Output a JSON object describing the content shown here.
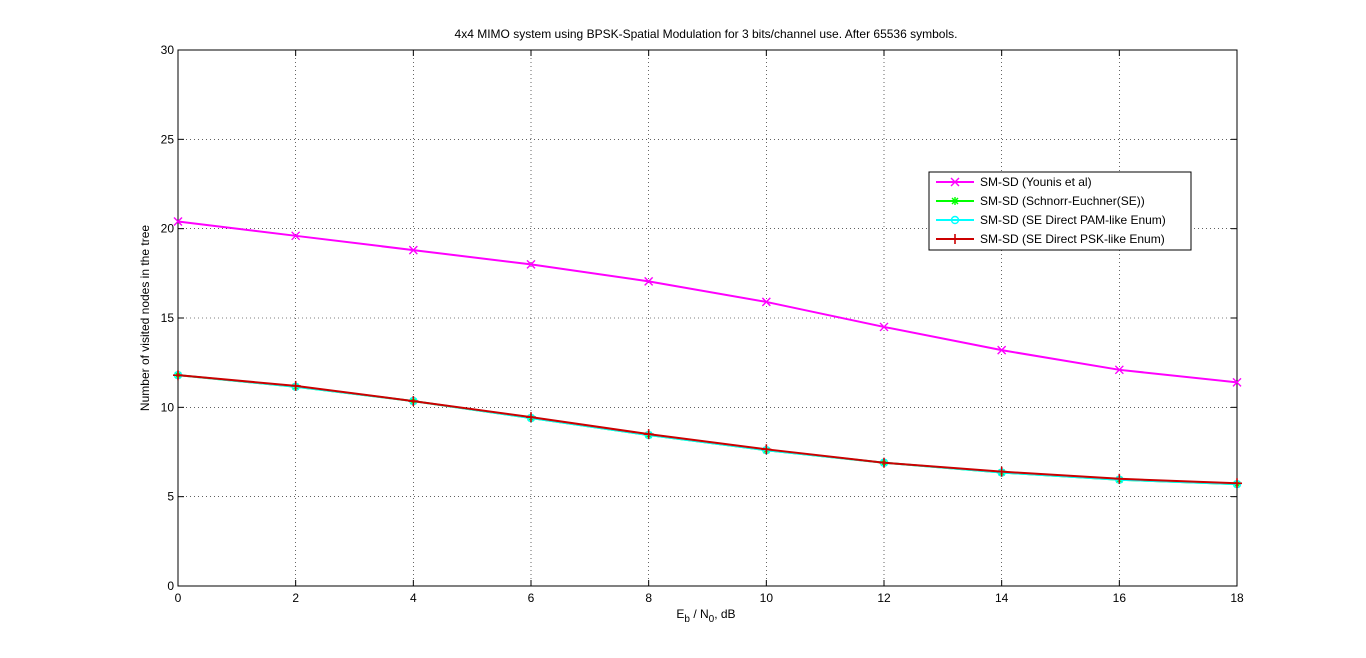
{
  "chart_data": {
    "type": "line",
    "title": "4x4 MIMO system using BPSK-Spatial Modulation for 3 bits/channel use. After 65536 symbols.",
    "xlabel": {
      "main": "E",
      "sub1": "b",
      "mid": " / N",
      "sub2": "0",
      "tail": ", dB"
    },
    "ylabel": "Number of visited nodes in the tree",
    "xlim": [
      0,
      18
    ],
    "ylim": [
      0,
      30
    ],
    "xticks": [
      "0",
      "2",
      "4",
      "6",
      "8",
      "10",
      "12",
      "14",
      "16",
      "18"
    ],
    "yticks": [
      "0",
      "5",
      "10",
      "15",
      "20",
      "25",
      "30"
    ],
    "grid": true,
    "legend_position": "top-right",
    "x": [
      0,
      2,
      4,
      6,
      8,
      10,
      12,
      14,
      16,
      18
    ],
    "series": [
      {
        "name": "SM-SD (Younis et al)",
        "color": "#ff00ff",
        "marker": "x-star",
        "values": [
          20.4,
          19.6,
          18.8,
          18.0,
          17.05,
          15.9,
          14.5,
          13.2,
          12.1,
          11.4
        ]
      },
      {
        "name": "SM-SD (Schnorr-Euchner(SE))",
        "color": "#00ff00",
        "marker": "star",
        "values": [
          11.8,
          11.15,
          10.35,
          9.4,
          8.45,
          7.6,
          6.9,
          6.35,
          5.95,
          5.7
        ]
      },
      {
        "name": "SM-SD (SE Direct PAM-like Enum)",
        "color": "#00ffff",
        "marker": "circle",
        "values": [
          11.8,
          11.15,
          10.35,
          9.4,
          8.45,
          7.6,
          6.9,
          6.35,
          5.95,
          5.7
        ]
      },
      {
        "name": "SM-SD (SE Direct PSK-like Enum)",
        "color": "#cc0000",
        "marker": "plus",
        "values": [
          11.8,
          11.2,
          10.35,
          9.45,
          8.5,
          7.65,
          6.9,
          6.4,
          6.0,
          5.75
        ]
      }
    ]
  }
}
